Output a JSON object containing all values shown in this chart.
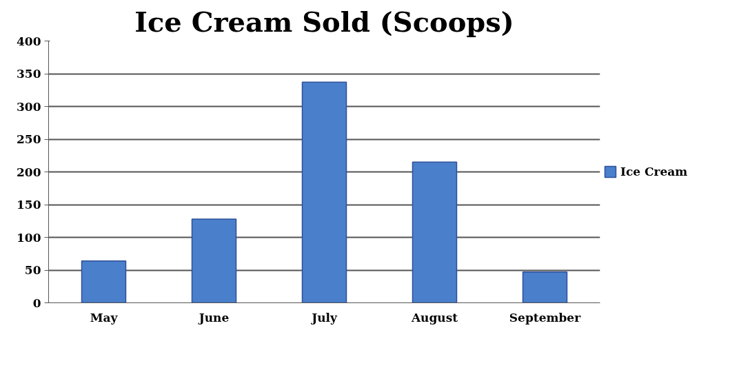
{
  "chart_data": {
    "type": "bar",
    "title": "Ice Cream Sold (Scoops)",
    "categories": [
      "May",
      "June",
      "July",
      "August",
      "September"
    ],
    "series": [
      {
        "name": "Ice Cream",
        "color": "#4a7fcb",
        "values": [
          64,
          128,
          337,
          215,
          47
        ]
      }
    ],
    "ylim": [
      0,
      400
    ],
    "yticks": [
      0,
      50,
      100,
      150,
      200,
      250,
      300,
      350,
      400
    ],
    "grid": "y",
    "legend": "right"
  }
}
